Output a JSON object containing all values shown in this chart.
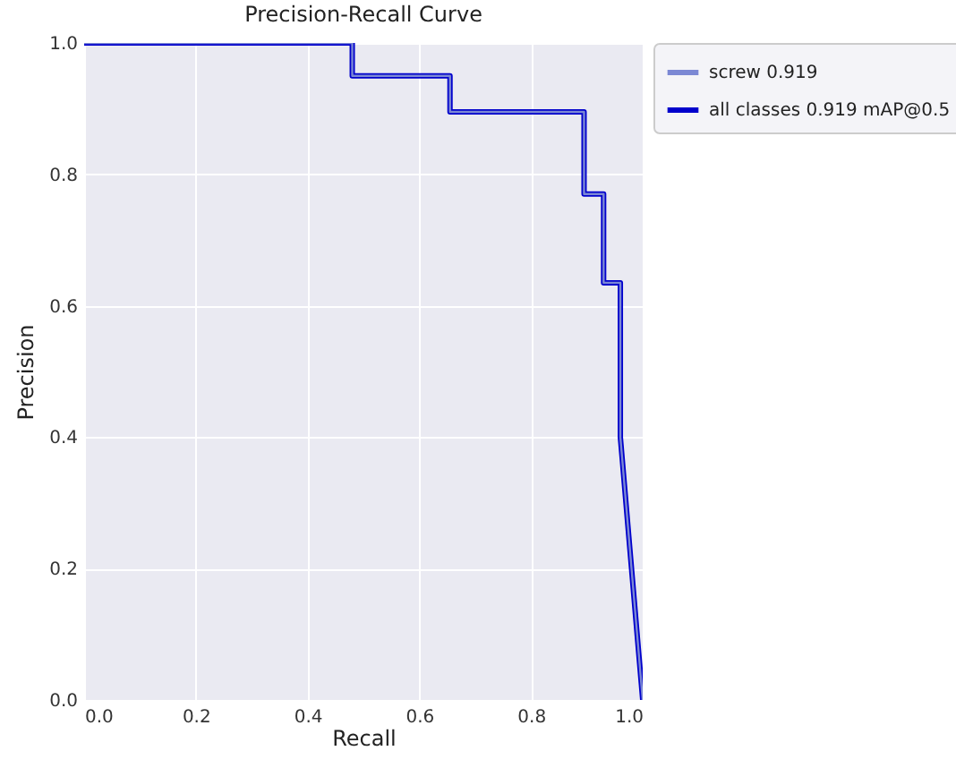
{
  "chart_data": {
    "type": "line",
    "title": "Precision-Recall Curve",
    "xlabel": "Recall",
    "ylabel": "Precision",
    "xlim": [
      0,
      1
    ],
    "ylim": [
      0,
      1
    ],
    "xticks": [
      {
        "value": 0,
        "label": "0.0"
      },
      0.2,
      0.4,
      0.6,
      0.8,
      {
        "value": 1,
        "label": "1.0"
      }
    ],
    "yticks": [
      {
        "value": 0,
        "label": "0.0"
      },
      0.2,
      0.4,
      0.6,
      0.8,
      {
        "value": 1,
        "label": "1.0"
      }
    ],
    "grid": true,
    "legend": "top right",
    "series": [
      {
        "name": "all classes 0.919 mAP@0.5",
        "color": "#0000cc",
        "x": [
          0,
          0.48,
          0.48,
          0.655,
          0.655,
          0.895,
          0.895,
          0.93,
          0.93,
          0.96,
          0.96,
          1.0
        ],
        "values": [
          1,
          1,
          0.95,
          0.95,
          0.895,
          0.895,
          0.77,
          0.77,
          0.635,
          0.635,
          0.4,
          0
        ]
      },
      {
        "name": "screw 0.919",
        "color": "#7b88d4",
        "x": [
          0,
          0.48,
          0.48,
          0.655,
          0.655,
          0.895,
          0.895,
          0.93,
          0.93,
          0.96,
          0.96,
          1.0
        ],
        "values": [
          1,
          1,
          0.95,
          0.95,
          0.895,
          0.895,
          0.77,
          0.77,
          0.635,
          0.635,
          0.4,
          0
        ]
      }
    ]
  }
}
